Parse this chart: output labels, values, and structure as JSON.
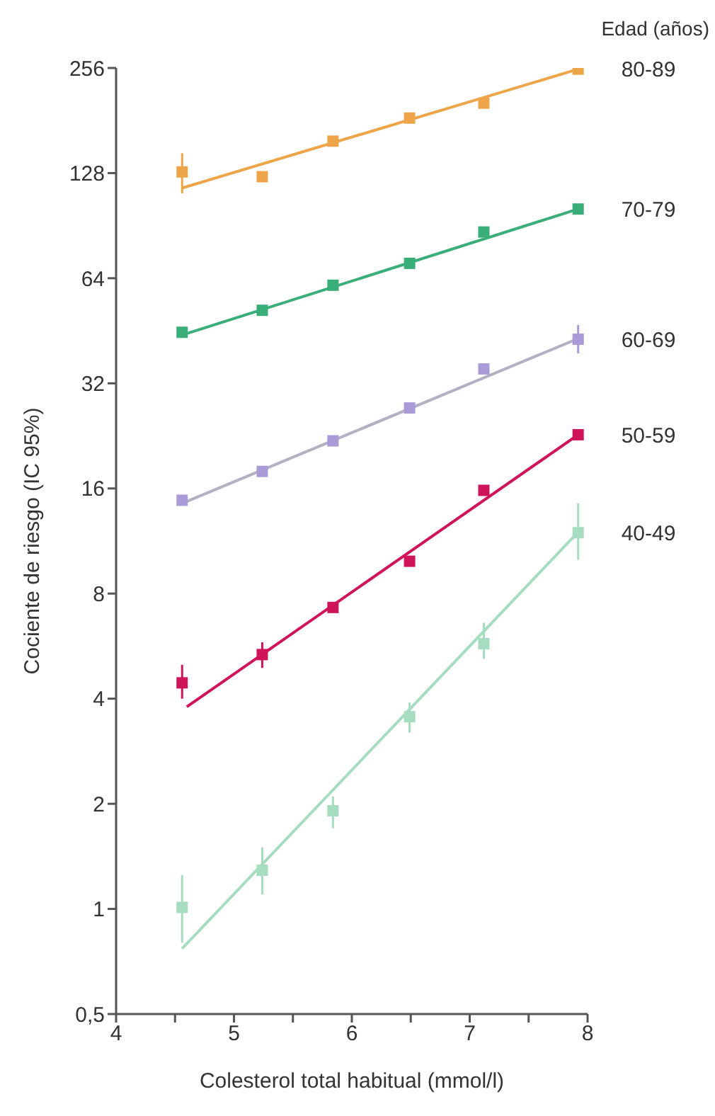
{
  "chart_data": {
    "type": "scatter",
    "xlabel": "Colesterol total habitual (mmol/l)",
    "ylabel": "Cociente de riesgo (IC 95%)",
    "legend_title": "Edad (años)",
    "log": "y",
    "xlim": [
      4,
      8
    ],
    "xticks": [
      4,
      {
        "value": 4.5,
        "label": null
      },
      5,
      {
        "value": 5.5,
        "label": null
      },
      6,
      {
        "value": 6.5,
        "label": null
      },
      7,
      {
        "value": 7.5,
        "label": null
      },
      8
    ],
    "ylim": [
      0.5,
      256
    ],
    "yticks": [
      {
        "value": 0.5,
        "label": "0,5"
      },
      1,
      2,
      4,
      8,
      16,
      32,
      64,
      128,
      256
    ],
    "series": [
      {
        "name": "80-89",
        "marker": "square",
        "color": "#eea54a",
        "x": [
          4.56,
          5.24,
          5.84,
          6.49,
          7.12,
          7.92
        ],
        "values": [
          129,
          125,
          158,
          184,
          203,
          254
        ],
        "errors": [
          [
            112,
            146
          ],
          null,
          null,
          null,
          null,
          null
        ]
      },
      {
        "type": "line",
        "color": "#eea54a",
        "x": [
          4.56,
          7.92
        ],
        "values": [
          116,
          254
        ]
      },
      {
        "name": "70-79",
        "marker": "square",
        "color": "#3aae78",
        "x": [
          4.56,
          5.24,
          5.84,
          6.49,
          7.12,
          7.92
        ],
        "values": [
          44.8,
          51.8,
          61.1,
          70.6,
          86.8,
          101
        ],
        "errors": [
          null,
          null,
          null,
          null,
          null,
          null
        ]
      },
      {
        "type": "line",
        "color": "#3aae78",
        "x": [
          4.56,
          7.92
        ],
        "values": [
          44,
          101
        ]
      },
      {
        "name": "60-69",
        "marker": "square",
        "color": "#a99ad8",
        "x": [
          4.56,
          5.24,
          5.84,
          6.49,
          7.12,
          7.92
        ],
        "values": [
          14.8,
          17.9,
          21.9,
          27.2,
          35.2,
          42.8
        ],
        "errors": [
          null,
          null,
          null,
          null,
          null,
          [
            39,
            47
          ]
        ]
      },
      {
        "type": "line",
        "color": "#b4b0c4",
        "x": [
          4.56,
          7.92
        ],
        "values": [
          14.5,
          43
        ]
      },
      {
        "name": "50-59",
        "marker": "square",
        "color": "#d0145a",
        "x": [
          4.56,
          5.24,
          5.84,
          6.49,
          7.12,
          7.92
        ],
        "values": [
          4.44,
          5.35,
          7.3,
          9.9,
          15.8,
          22.8
        ],
        "errors": [
          [
            4.0,
            5.0
          ],
          [
            4.9,
            5.8
          ],
          null,
          null,
          null,
          null
        ]
      },
      {
        "type": "line",
        "color": "#d0145a",
        "x": [
          4.6,
          7.92
        ],
        "values": [
          3.79,
          22.8
        ]
      },
      {
        "name": "40-49",
        "marker": "square",
        "color": "#a6dcc0",
        "x": [
          4.56,
          5.24,
          5.84,
          6.49,
          7.12,
          7.92
        ],
        "values": [
          1.01,
          1.29,
          1.91,
          3.55,
          5.75,
          11.95
        ],
        "errors": [
          [
            0.8,
            1.25
          ],
          [
            1.1,
            1.5
          ],
          [
            1.7,
            2.1
          ],
          [
            3.2,
            3.9
          ],
          [
            5.2,
            6.6
          ],
          [
            10,
            14.5
          ]
        ]
      },
      {
        "type": "line",
        "color": "#a6dcc0",
        "x": [
          4.56,
          7.92
        ],
        "values": [
          0.77,
          12
        ]
      }
    ]
  }
}
